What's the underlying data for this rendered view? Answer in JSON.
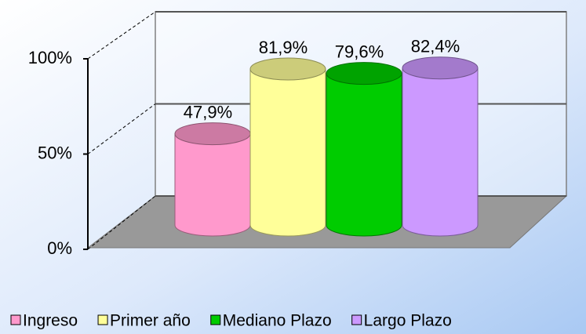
{
  "chart_data": {
    "type": "bar",
    "series": [
      {
        "name": "Ingreso",
        "color": "#ff99cc",
        "values": [
          47.9
        ],
        "value_labels": [
          "47,9%"
        ]
      },
      {
        "name": "Primer año",
        "color": "#ffff99",
        "values": [
          81.9
        ],
        "value_labels": [
          "81,9%"
        ]
      },
      {
        "name": "Mediano Plazo",
        "color": "#00cc00",
        "values": [
          79.6
        ],
        "value_labels": [
          "79,6%"
        ]
      },
      {
        "name": "Largo Plazo",
        "color": "#cc99ff",
        "values": [
          82.4
        ],
        "value_labels": [
          "82,4%"
        ]
      }
    ],
    "ylim": [
      0,
      100
    ],
    "yticks": [
      {
        "value": 0,
        "label": "0%"
      },
      {
        "value": 50,
        "label": "50%"
      },
      {
        "value": 100,
        "label": "100%"
      }
    ],
    "grid": true
  }
}
